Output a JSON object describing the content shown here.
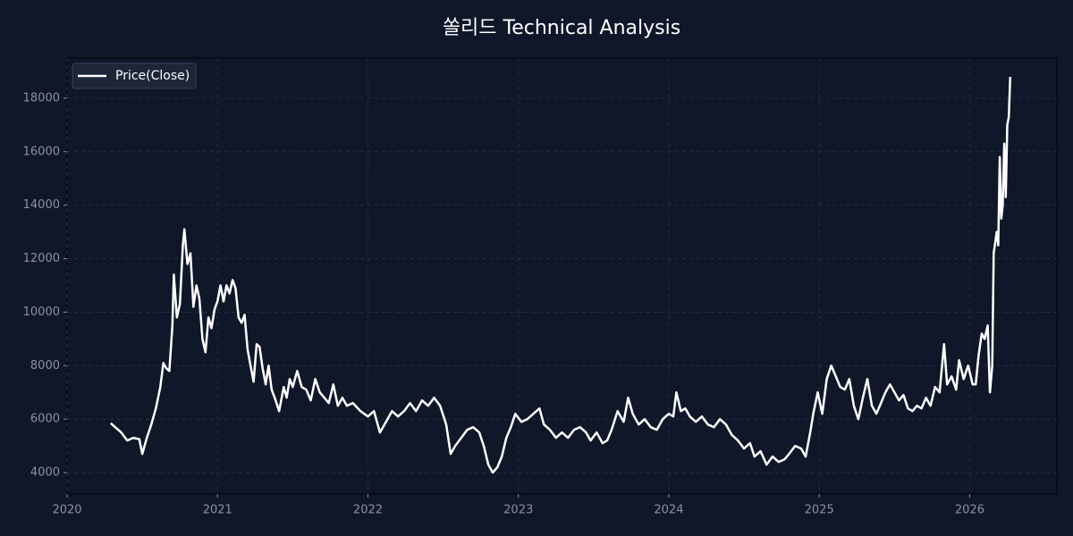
{
  "chart_data": {
    "type": "line",
    "title": "쏠리드 Technical Analysis",
    "x": [
      2020.29,
      2020.32,
      2020.36,
      2020.4,
      2020.44,
      2020.48,
      2020.5,
      2020.53,
      2020.56,
      2020.59,
      2020.62,
      2020.64,
      2020.66,
      2020.68,
      2020.7,
      2020.71,
      2020.73,
      2020.75,
      2020.77,
      2020.78,
      2020.8,
      2020.82,
      2020.84,
      2020.86,
      2020.88,
      2020.9,
      2020.92,
      2020.94,
      2020.96,
      2020.98,
      2021.0,
      2021.02,
      2021.04,
      2021.06,
      2021.08,
      2021.1,
      2021.12,
      2021.14,
      2021.16,
      2021.18,
      2021.2,
      2021.22,
      2021.24,
      2021.26,
      2021.28,
      2021.3,
      2021.32,
      2021.34,
      2021.36,
      2021.38,
      2021.41,
      2021.44,
      2021.46,
      2021.48,
      2021.5,
      2021.53,
      2021.56,
      2021.59,
      2021.62,
      2021.65,
      2021.68,
      2021.71,
      2021.74,
      2021.77,
      2021.8,
      2021.83,
      2021.86,
      2021.9,
      2021.95,
      2022.0,
      2022.04,
      2022.08,
      2022.12,
      2022.16,
      2022.2,
      2022.24,
      2022.28,
      2022.32,
      2022.36,
      2022.4,
      2022.44,
      2022.48,
      2022.52,
      2022.55,
      2022.58,
      2022.62,
      2022.66,
      2022.7,
      2022.74,
      2022.77,
      2022.8,
      2022.83,
      2022.86,
      2022.89,
      2022.92,
      2022.95,
      2022.98,
      2023.02,
      2023.06,
      2023.1,
      2023.14,
      2023.17,
      2023.21,
      2023.25,
      2023.29,
      2023.33,
      2023.37,
      2023.41,
      2023.45,
      2023.48,
      2023.52,
      2023.56,
      2023.59,
      2023.62,
      2023.66,
      2023.7,
      2023.73,
      2023.76,
      2023.8,
      2023.84,
      2023.88,
      2023.92,
      2023.96,
      2024.0,
      2024.03,
      2024.05,
      2024.08,
      2024.11,
      2024.14,
      2024.18,
      2024.22,
      2024.26,
      2024.3,
      2024.34,
      2024.38,
      2024.42,
      2024.46,
      2024.5,
      2024.54,
      2024.57,
      2024.61,
      2024.65,
      2024.69,
      2024.73,
      2024.77,
      2024.8,
      2024.84,
      2024.88,
      2024.91,
      2024.94,
      2024.96,
      2024.99,
      2025.02,
      2025.05,
      2025.08,
      2025.11,
      2025.14,
      2025.17,
      2025.2,
      2025.23,
      2025.26,
      2025.29,
      2025.32,
      2025.35,
      2025.38,
      2025.41,
      2025.44,
      2025.47,
      2025.5,
      2025.53,
      2025.56,
      2025.59,
      2025.62,
      2025.65,
      2025.68,
      2025.71,
      2025.74,
      2025.77,
      2025.8,
      2025.83,
      2025.85,
      2025.88,
      2025.91,
      2025.93,
      2025.96,
      2025.99,
      2026.02,
      2026.04,
      2026.06,
      2026.08,
      2026.1,
      2026.12,
      2026.135,
      2026.15,
      2026.16,
      2026.17,
      2026.18,
      2026.19,
      2026.2,
      2026.21,
      2026.22,
      2026.23,
      2026.24,
      2026.25,
      2026.26,
      2026.27
    ],
    "series": [
      {
        "name": "Price(Close)",
        "color": "#ffffff",
        "values": [
          5850,
          5700,
          5500,
          5200,
          5300,
          5250,
          4700,
          5300,
          5800,
          6400,
          7200,
          8100,
          7900,
          7800,
          9500,
          11400,
          9800,
          10300,
          12500,
          13100,
          11800,
          12200,
          10200,
          11000,
          10500,
          9000,
          8500,
          9800,
          9400,
          10100,
          10400,
          11000,
          10400,
          11000,
          10700,
          11200,
          10900,
          9800,
          9600,
          9900,
          8600,
          8000,
          7400,
          8800,
          8700,
          7900,
          7300,
          8000,
          7100,
          6800,
          6300,
          7200,
          6800,
          7500,
          7200,
          7800,
          7200,
          7100,
          6700,
          7500,
          7000,
          6800,
          6600,
          7300,
          6500,
          6800,
          6500,
          6600,
          6300,
          6100,
          6300,
          5500,
          5900,
          6300,
          6100,
          6300,
          6600,
          6300,
          6700,
          6500,
          6800,
          6500,
          5800,
          4700,
          5000,
          5300,
          5600,
          5700,
          5500,
          5000,
          4300,
          4000,
          4200,
          4600,
          5300,
          5700,
          6200,
          5900,
          6000,
          6200,
          6400,
          5800,
          5600,
          5300,
          5500,
          5300,
          5600,
          5700,
          5500,
          5200,
          5500,
          5100,
          5200,
          5600,
          6300,
          5900,
          6800,
          6200,
          5800,
          6000,
          5700,
          5600,
          6000,
          6200,
          6100,
          7000,
          6300,
          6400,
          6100,
          5900,
          6100,
          5800,
          5700,
          6000,
          5800,
          5400,
          5200,
          4900,
          5100,
          4600,
          4800,
          4300,
          4600,
          4400,
          4500,
          4700,
          5000,
          4900,
          4600,
          5500,
          6200,
          7000,
          6200,
          7500,
          8000,
          7600,
          7200,
          7100,
          7500,
          6500,
          6000,
          6800,
          7500,
          6500,
          6200,
          6600,
          7000,
          7300,
          7000,
          6700,
          6900,
          6400,
          6300,
          6500,
          6400,
          6800,
          6500,
          7200,
          7000,
          8800,
          7300,
          7600,
          7100,
          8200,
          7500,
          8000,
          7300,
          7300,
          8400,
          9200,
          9000,
          9500,
          7000,
          8000,
          12200,
          12600,
          13000,
          12500,
          15800,
          13500,
          14000,
          16300,
          14300,
          17000,
          17300,
          18800
        ]
      }
    ],
    "xlim": [
      2020,
      2026.58
    ],
    "xticks": [
      2020,
      2021,
      2022,
      2023,
      2024,
      2025,
      2026
    ],
    "ylim": [
      3200,
      19500
    ],
    "yticks": [
      4000,
      6000,
      8000,
      10000,
      12000,
      14000,
      16000,
      18000
    ],
    "grid": true,
    "legend": "upper left"
  }
}
